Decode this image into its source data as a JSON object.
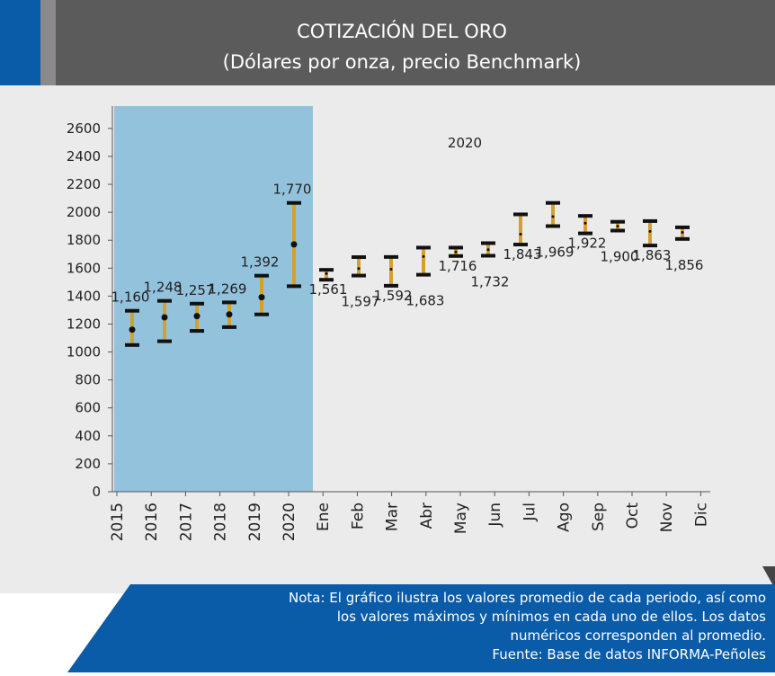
{
  "chart_data": {
    "type": "errorbar",
    "title": "COTIZACIÓN DEL ORO",
    "subtitle": "(Dólares por onza, precio Benchmark)",
    "annotation": "2020",
    "categories": [
      "2015",
      "2016",
      "2017",
      "2018",
      "2019",
      "2020",
      "Ene",
      "Feb",
      "Mar",
      "Abr",
      "May",
      "Jun",
      "Jul",
      "Ago",
      "Sep",
      "Oct",
      "Nov",
      "Dic"
    ],
    "values": [
      1160,
      1248,
      1257,
      1269,
      1392,
      1770,
      1561,
      1597,
      1592,
      1683,
      1716,
      1732,
      1843,
      1969,
      1922,
      1900,
      1863,
      1856
    ],
    "value_labels": [
      "1,160",
      "1,248",
      "1,257",
      "1,269",
      "1,392",
      "1,770",
      "1,561",
      "1,597",
      "1,592",
      "1,683",
      "1,716",
      "1,732",
      "1,843",
      "1,969",
      "1,922",
      "1,900",
      "1,863",
      "1,856"
    ],
    "max": [
      1295,
      1366,
      1346,
      1355,
      1546,
      2067,
      1588,
      1679,
      1680,
      1747,
      1747,
      1779,
      1985,
      2067,
      1974,
      1932,
      1937,
      1892
    ],
    "min": [
      1050,
      1077,
      1151,
      1178,
      1269,
      1471,
      1517,
      1547,
      1474,
      1553,
      1687,
      1689,
      1769,
      1901,
      1849,
      1869,
      1762,
      1809
    ],
    "bar_color": "#d4a02a",
    "cap_color": "#111111",
    "highlight_color": "#93c2dd",
    "ylim": [
      0,
      2760
    ],
    "yticks": [
      0,
      200,
      400,
      600,
      800,
      1000,
      1200,
      1400,
      1600,
      1800,
      2000,
      2200,
      2400,
      2600
    ],
    "notes": [
      "Nota: El gráfico ilustra los valores promedio de cada periodo, así como",
      "los valores máximos y mínimos en cada uno de ellos. Los datos",
      "numéricos corresponden al promedio.",
      "Fuente: Base de datos INFORMA-Peñoles"
    ]
  }
}
